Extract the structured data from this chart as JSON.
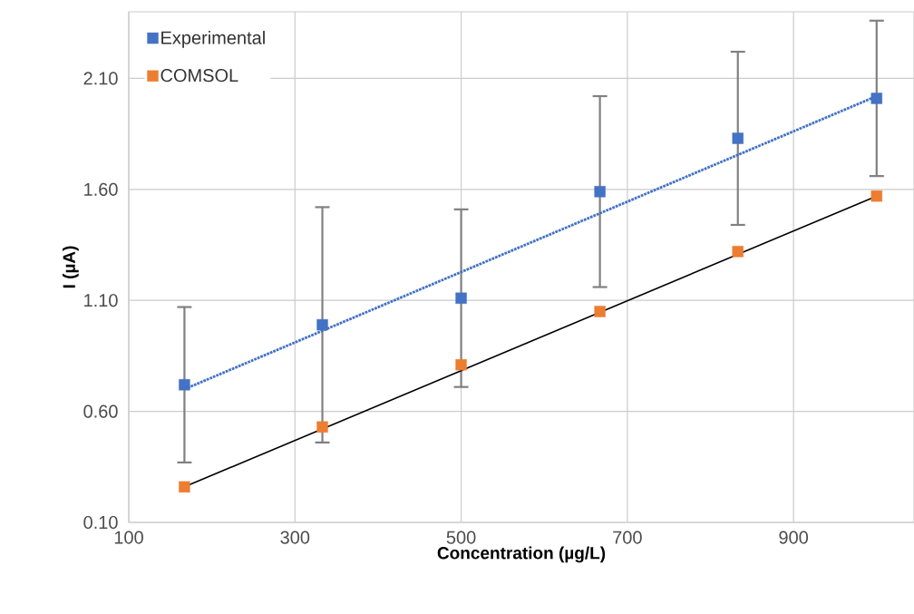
{
  "chart_data": {
    "type": "scatter",
    "xlabel": "Concentration (µg/L)",
    "ylabel": "I (µA)",
    "xlim": [
      100,
      1045
    ],
    "ylim": [
      0.1,
      2.4
    ],
    "xticks": [
      100,
      300,
      500,
      700,
      900
    ],
    "yticks": [
      {
        "value": 0.1,
        "label": "0.10"
      },
      {
        "value": 0.6,
        "label": "0.60"
      },
      {
        "value": 1.1,
        "label": "1.10"
      },
      {
        "value": 1.6,
        "label": "1.60"
      },
      {
        "value": 2.1,
        "label": "2.10"
      }
    ],
    "grid": true,
    "legend": "top left",
    "marker": "square",
    "series": [
      {
        "name": "Experimental",
        "color": "#4472c4",
        "x": [
          167,
          333,
          500,
          667,
          833,
          1000
        ],
        "values": [
          0.72,
          0.99,
          1.11,
          1.59,
          1.83,
          2.01
        ],
        "errors": [
          0.35,
          0.53,
          0.4,
          0.43,
          0.39,
          0.35
        ]
      },
      {
        "name": "COMSOL",
        "color": "#ed7d31",
        "x": [
          167,
          333,
          500,
          667,
          833,
          1000
        ],
        "values": [
          0.26,
          0.53,
          0.81,
          1.05,
          1.32,
          1.57
        ]
      },
      {
        "type": "line",
        "color": "#4472c4",
        "line_style": "dotted",
        "marker": "none",
        "x": [
          167,
          1000
        ],
        "values": [
          0.7,
          2.02
        ]
      },
      {
        "type": "line",
        "color": "#000000",
        "line_style": "solid",
        "marker": "none",
        "x": [
          167,
          1000
        ],
        "values": [
          0.26,
          1.57
        ]
      }
    ]
  }
}
